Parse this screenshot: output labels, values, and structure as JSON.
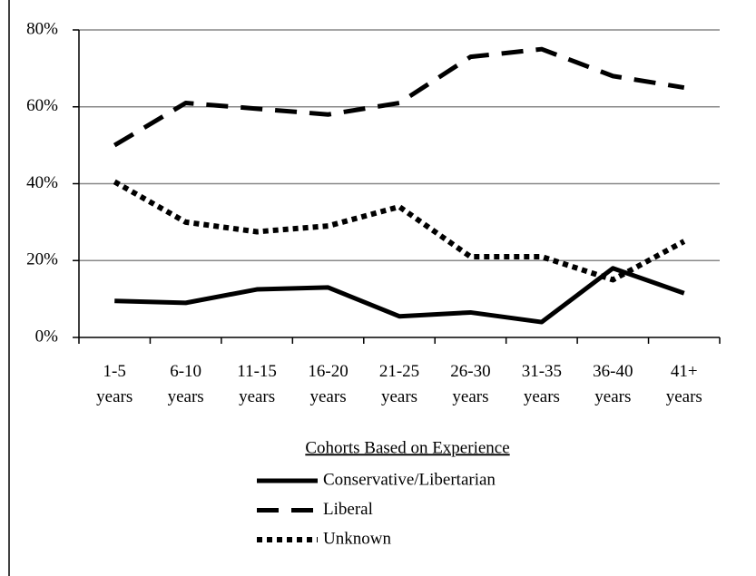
{
  "chart_data": {
    "type": "line",
    "legend_title": "Cohorts Based on Experience",
    "categories": [
      "1-5 years",
      "6-10 years",
      "11-15 years",
      "16-20 years",
      "21-25 years",
      "26-30 years",
      "31-35 years",
      "36-40 years",
      "41+ years"
    ],
    "series": [
      {
        "name": "Conservative/Libertarian",
        "color": "#000000",
        "style": "solid",
        "values": [
          9.5,
          9,
          12.5,
          13,
          5.5,
          6.5,
          4,
          18,
          11.5
        ]
      },
      {
        "name": "Liberal",
        "color": "#000000",
        "style": "dashed",
        "values": [
          50,
          61,
          59.5,
          58,
          61,
          73,
          75,
          68,
          65
        ]
      },
      {
        "name": "Unknown",
        "color": "#000000",
        "style": "dotted",
        "values": [
          40.5,
          30,
          27.5,
          29,
          34,
          21,
          21,
          15,
          25
        ]
      }
    ],
    "ylim": [
      0,
      80
    ],
    "yticks": [
      {
        "value": 0,
        "label": "0%"
      },
      {
        "value": 20,
        "label": "20%"
      },
      {
        "value": 40,
        "label": "40%"
      },
      {
        "value": 60,
        "label": "60%"
      },
      {
        "value": 80,
        "label": "80%"
      }
    ],
    "grid": true,
    "legend": "bottom"
  }
}
